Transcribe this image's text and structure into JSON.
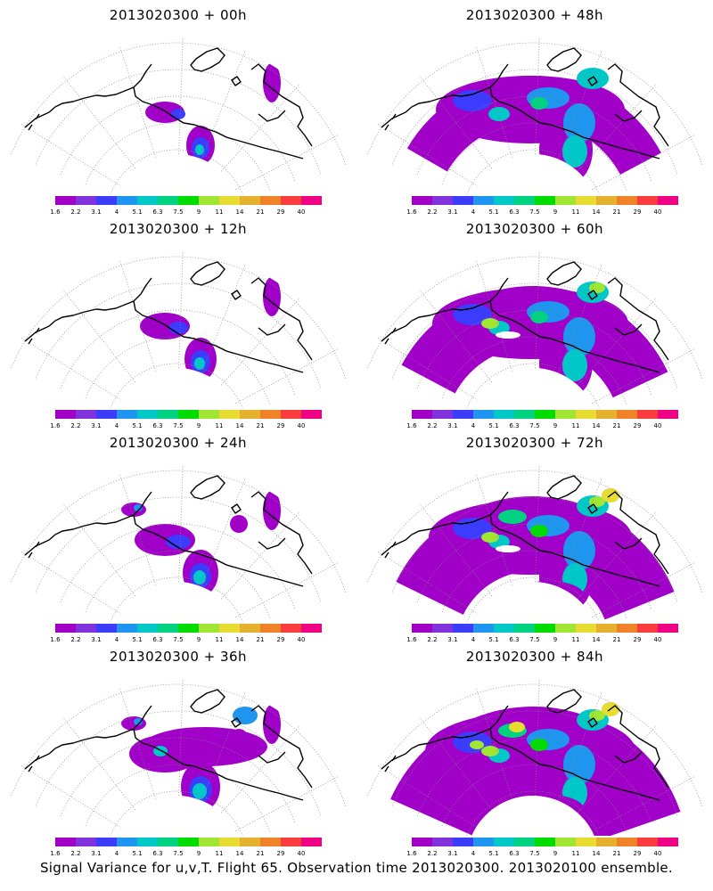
{
  "colorbar": {
    "colors": [
      "#a000c8",
      "#8232dc",
      "#3c3cff",
      "#1e96f0",
      "#00c8c8",
      "#00d282",
      "#00dc00",
      "#a0e632",
      "#e6dc32",
      "#e6af2d",
      "#f08228",
      "#fa3c3c",
      "#f00082"
    ],
    "labels": [
      "1.6",
      "2.2",
      "3.1",
      "4",
      "5.1",
      "6.3",
      "7.5",
      "9",
      "11",
      "14",
      "21",
      "29",
      "40"
    ]
  },
  "panels": [
    {
      "title": "2013020300 + 00h",
      "level": 0
    },
    {
      "title": "2013020300 + 48h",
      "level": 4
    },
    {
      "title": "2013020300 + 12h",
      "level": 1
    },
    {
      "title": "2013020300 + 60h",
      "level": 5
    },
    {
      "title": "2013020300 + 24h",
      "level": 2
    },
    {
      "title": "2013020300 + 72h",
      "level": 6
    },
    {
      "title": "2013020300 + 36h",
      "level": 3
    },
    {
      "title": "2013020300 + 84h",
      "level": 7
    }
  ],
  "footer": "Signal Variance for u,v,T. Flight 65. Observation time 2013020300. 2013020100 ensemble."
}
